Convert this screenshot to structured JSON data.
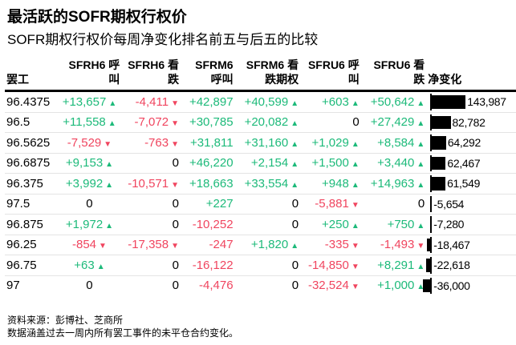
{
  "title": "最活跃的SOFR期权行权价",
  "subtitle": "SOFR期权行权价每周净变化排名前五与后五的比较",
  "chart_data": {
    "type": "table",
    "columns": [
      "罢工",
      "SFRH6 呼叫",
      "SFRH6 看跌",
      "SFRM6 呼叫",
      "SFRM6 看跌期权",
      "SFRU6 呼叫",
      "SFRU6 看跌",
      "净变化"
    ],
    "rows": [
      [
        "96.4375",
        "+13,657",
        "-4,411",
        "+42,897",
        "+40,599",
        "+603",
        "+50,642",
        "143,987"
      ],
      [
        "96.5",
        "+11,558",
        "-7,072",
        "+30,785",
        "+20,082",
        "0",
        "+27,429",
        "82,782"
      ],
      [
        "96.5625",
        "-7,529",
        "-763",
        "+31,811",
        "+31,160",
        "+1,029",
        "+8,584",
        "64,292"
      ],
      [
        "96.6875",
        "+9,153",
        "0",
        "+46,220",
        "+2,154",
        "+1,500",
        "+3,440",
        "62,467"
      ],
      [
        "96.375",
        "+3,992",
        "-10,571",
        "+18,663",
        "+33,554",
        "+948",
        "+14,963",
        "61,549"
      ],
      [
        "97.5",
        "0",
        "0",
        "+227",
        "0",
        "-5,881",
        "0",
        "-5,654"
      ],
      [
        "96.875",
        "+1,972",
        "0",
        "-10,252",
        "0",
        "+250",
        "+750",
        "-7,280"
      ],
      [
        "96.25",
        "-854",
        "-17,358",
        "-247",
        "+1,820",
        "-335",
        "-1,493",
        "-18,467"
      ],
      [
        "96.75",
        "+63",
        "0",
        "-16,122",
        "0",
        "-14,850",
        "+8,291",
        "-22,618"
      ],
      [
        "97",
        "0",
        "0",
        "-4,476",
        "0",
        "-32,524",
        "+1,000",
        "-36,000"
      ]
    ],
    "net_change_values": [
      143987,
      82782,
      64292,
      62467,
      61549,
      -5654,
      -7280,
      -18467,
      -22618,
      -36000
    ],
    "no_arrow_columns": [
      3
    ],
    "colors": {
      "positive": "#1dba7a",
      "negative": "#f0455f",
      "bar": "#000000"
    }
  },
  "footer": {
    "source": "资料来源：彭博社、芝商所",
    "note": "数据涵盖过去一周内所有罢工事件的未平仓合约变化。"
  }
}
